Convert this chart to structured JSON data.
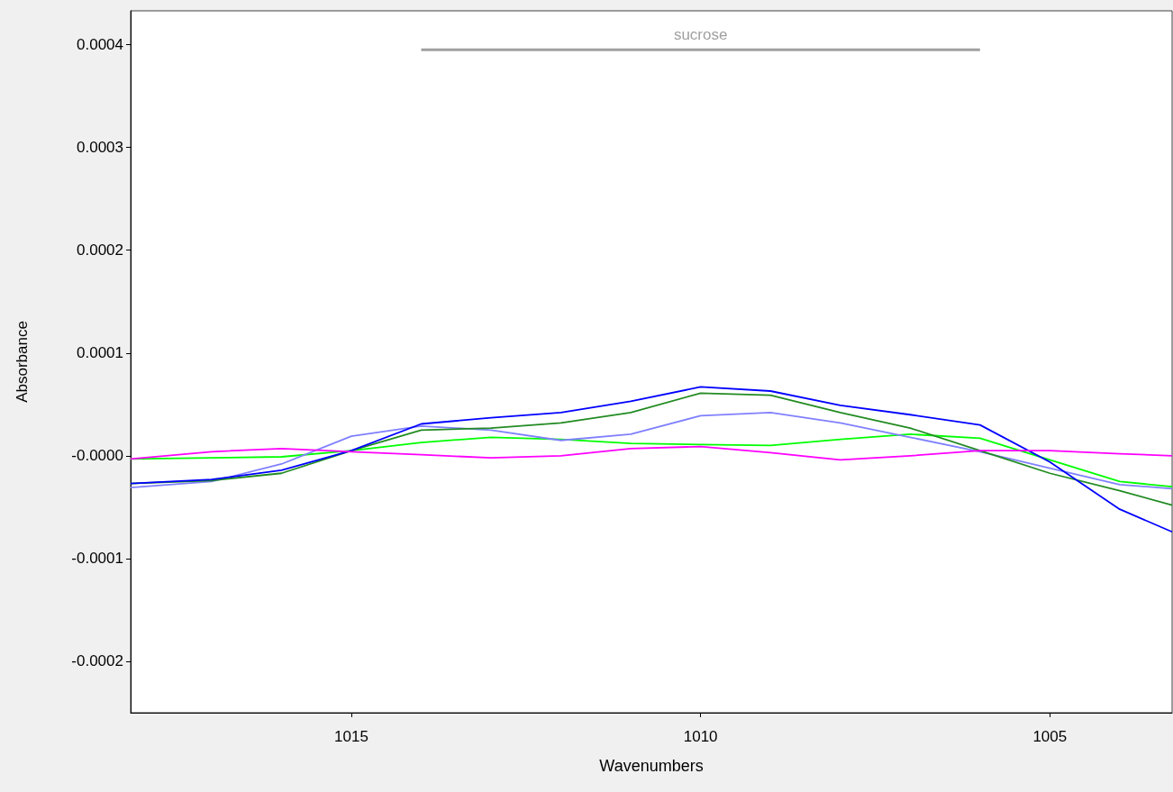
{
  "chart_data": {
    "type": "line",
    "xlabel": "Wavenumbers",
    "ylabel": "Absorbance",
    "x": [
      1018.16,
      1017,
      1016,
      1015,
      1014,
      1013,
      1012,
      1011,
      1010,
      1009,
      1008,
      1007,
      1006,
      1005,
      1004,
      1003.25
    ],
    "series": [
      {
        "color": "#ff00ff",
        "values": [
          -3e-06,
          4e-06,
          7e-06,
          4e-06,
          1e-06,
          -2e-06,
          0,
          7e-06,
          9e-06,
          3e-06,
          -4e-06,
          0,
          5e-06,
          5e-06,
          2e-06,
          0
        ]
      },
      {
        "color": "#00ff00",
        "values": [
          -3e-06,
          -2e-06,
          -1e-06,
          5e-06,
          1.3e-05,
          1.8e-05,
          1.6e-05,
          1.2e-05,
          1.1e-05,
          1e-05,
          1.6e-05,
          2.1e-05,
          1.7e-05,
          -4e-06,
          -2.5e-05,
          -3e-05
        ]
      },
      {
        "color": "#8080ff",
        "values": [
          -3.1e-05,
          -2.5e-05,
          -8e-06,
          1.9e-05,
          2.9e-05,
          2.5e-05,
          1.5e-05,
          2.1e-05,
          3.9e-05,
          4.2e-05,
          3.2e-05,
          1.8e-05,
          4e-06,
          -1.2e-05,
          -2.8e-05,
          -3.2e-05
        ]
      },
      {
        "color": "#228b22",
        "values": [
          -2.7e-05,
          -2.4e-05,
          -1.7e-05,
          5e-06,
          2.5e-05,
          2.7e-05,
          3.2e-05,
          4.2e-05,
          6.1e-05,
          5.9e-05,
          4.2e-05,
          2.7e-05,
          5e-06,
          -1.7e-05,
          -3.4e-05,
          -4.8e-05
        ]
      },
      {
        "color": "#0000ff",
        "values": [
          -2.7e-05,
          -2.3e-05,
          -1.4e-05,
          5e-06,
          3.1e-05,
          3.7e-05,
          4.2e-05,
          5.3e-05,
          6.7e-05,
          6.3e-05,
          4.9e-05,
          4e-05,
          3e-05,
          -6e-06,
          -5.2e-05,
          -7.4e-05
        ]
      },
      {
        "name": "sucrose",
        "color": "#a0a0a0",
        "x": [
          1014,
          1006
        ],
        "values": [
          0.000395,
          0.000395
        ]
      }
    ],
    "xlim": [
      1018.16,
      1003.25
    ],
    "xticks": [
      1015,
      1010,
      1005
    ],
    "ylim": [
      -0.00025,
      0.000433
    ],
    "yticks": [
      -0.0002,
      -0.0001,
      {
        "value": 0,
        "label": "-0.0000"
      },
      0.0001,
      0.0002,
      0.0003,
      0.0004
    ],
    "grid": false,
    "marker": "none",
    "line_style": "solid"
  }
}
